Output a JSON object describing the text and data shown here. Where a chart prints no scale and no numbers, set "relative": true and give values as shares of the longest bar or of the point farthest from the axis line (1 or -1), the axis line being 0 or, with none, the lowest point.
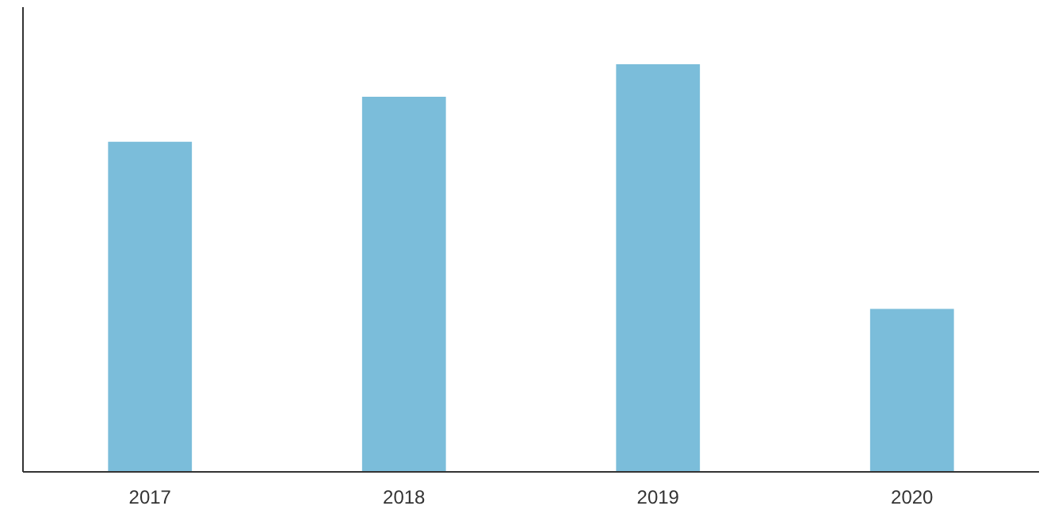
{
  "chart_data": {
    "type": "bar",
    "categories": [
      "2017",
      "2018",
      "2019",
      "2020"
    ],
    "values": [
      0.81,
      0.92,
      1,
      0.4
    ],
    "color": "#7bbdda",
    "relative": true,
    "grid": false
  }
}
